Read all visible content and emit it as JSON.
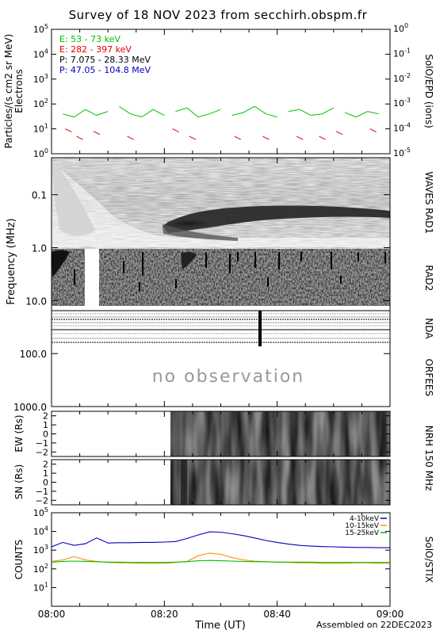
{
  "title": "Survey of 18 NOV 2023 from secchirh.obspm.fr",
  "footer": "Assembled on 22DEC2023",
  "xlabel": "Time (UT)",
  "time_ticks": [
    "08:00",
    "08:20",
    "08:40",
    "09:00"
  ],
  "no_observation": "no observation",
  "colors": {
    "green": "#00c000",
    "red": "#e00000",
    "black": "#000000",
    "blue": "#0000c0",
    "orange": "#ff8c00"
  },
  "chart_data": [
    {
      "type": "line",
      "panel": "particles",
      "ylabel": "Particles/(s cm2 sr MeV)",
      "ylabel2": "Electrons",
      "right_label": "SolO/EPD (ions)",
      "y_scale": "log",
      "ylim": [
        1,
        100000
      ],
      "left_ticks": [
        "10^0",
        "10^1",
        "10^2",
        "10^3",
        "10^4",
        "10^5"
      ],
      "right_ticks": [
        "10^-5",
        "10^-4",
        "10^-3",
        "10^-2",
        "10^-1",
        "10^0"
      ],
      "xlim": [
        "08:00",
        "09:00"
      ],
      "legend": [
        {
          "label": "E: 53 - 73 keV",
          "color": "green"
        },
        {
          "label": "E: 282 - 397 keV",
          "color": "red"
        },
        {
          "label": "P: 7.075 - 28.33 MeV",
          "color": "black"
        },
        {
          "label": "P: 47.05 - 104.8 MeV",
          "color": "blue"
        }
      ],
      "series": [
        {
          "name": "E: 53 - 73 keV",
          "color": "green",
          "x": [
            "08:02",
            "08:04",
            "08:06",
            "08:08",
            "08:10",
            "08:12",
            "08:14",
            "08:16",
            "08:18",
            "08:20",
            "08:22",
            "08:24",
            "08:26",
            "08:28",
            "08:30",
            "08:32",
            "08:34",
            "08:36",
            "08:38",
            "08:40",
            "08:42",
            "08:44",
            "08:46",
            "08:48",
            "08:50",
            "08:52",
            "08:54",
            "08:56",
            "08:58"
          ],
          "values": [
            40,
            30,
            60,
            35,
            50,
            80,
            40,
            30,
            60,
            35,
            50,
            70,
            30,
            40,
            60,
            35,
            45,
            80,
            40,
            30,
            50,
            60,
            35,
            40,
            70,
            45,
            30,
            50,
            40
          ]
        },
        {
          "name": "E: 282 - 397 keV",
          "color": "red",
          "x": [
            "08:03",
            "08:05",
            "08:08",
            "08:14",
            "08:22",
            "08:25",
            "08:33",
            "08:38",
            "08:44",
            "08:48",
            "08:51",
            "08:57"
          ],
          "values": [
            10,
            5,
            8,
            5,
            10,
            5,
            5,
            5,
            5,
            5,
            8,
            10
          ]
        }
      ]
    },
    {
      "type": "heatmap",
      "panel": "radio",
      "ylabel": "Frequency (MHz)",
      "y_scale": "log",
      "ylim": [
        0.02,
        1000
      ],
      "y_ticks": [
        "0.1",
        "1.0",
        "10.0",
        "100.0",
        "1000.0"
      ],
      "bands": [
        {
          "label": "WAVES RAD1",
          "range_mhz": [
            0.02,
            1
          ]
        },
        {
          "label": "RAD2",
          "range_mhz": [
            1,
            14
          ]
        },
        {
          "label": "NDA",
          "range_mhz": [
            14,
            80
          ]
        },
        {
          "label": "ORFEES",
          "range_mhz": [
            80,
            1000
          ]
        }
      ]
    },
    {
      "type": "heatmap",
      "panel": "nrh-ew",
      "ylabel": "EW (Rs)",
      "ylim": [
        -2.5,
        2.5
      ],
      "y_ticks": [
        "-2",
        "-1",
        "0",
        "1",
        "2"
      ]
    },
    {
      "type": "heatmap",
      "panel": "nrh-sn",
      "ylabel": "SN (Rs)",
      "right_label": "NRH 150 MHz",
      "ylim": [
        -2.5,
        2.5
      ],
      "y_ticks": [
        "-2",
        "-1",
        "0",
        "1",
        "2"
      ]
    },
    {
      "type": "line",
      "panel": "stix",
      "ylabel": "COUNTS",
      "right_label": "SolO/STIX",
      "y_scale": "log",
      "ylim": [
        1,
        100000
      ],
      "y_ticks": [
        "10^1",
        "10^2",
        "10^3",
        "10^4",
        "10^5"
      ],
      "x": [
        "08:00",
        "08:02",
        "08:04",
        "08:06",
        "08:08",
        "08:10",
        "08:12",
        "08:14",
        "08:16",
        "08:18",
        "08:20",
        "08:22",
        "08:24",
        "08:26",
        "08:28",
        "08:30",
        "08:32",
        "08:34",
        "08:36",
        "08:38",
        "08:40",
        "08:42",
        "08:44",
        "08:46",
        "08:48",
        "08:50",
        "08:52",
        "08:54",
        "08:56",
        "08:58",
        "09:00"
      ],
      "series": [
        {
          "name": "4-10keV",
          "color": "blue",
          "values": [
            1500,
            2600,
            1800,
            2200,
            4500,
            2400,
            2500,
            2500,
            2600,
            2600,
            2700,
            2900,
            4200,
            6500,
            9500,
            9200,
            7500,
            6000,
            4500,
            3300,
            2600,
            2100,
            1800,
            1650,
            1550,
            1500,
            1450,
            1400,
            1400,
            1350,
            1350
          ]
        },
        {
          "name": "10-15keV",
          "color": "orange",
          "values": [
            250,
            300,
            450,
            300,
            250,
            220,
            210,
            210,
            200,
            200,
            200,
            220,
            250,
            500,
            700,
            600,
            400,
            300,
            260,
            240,
            230,
            220,
            210,
            210,
            200,
            200,
            200,
            210,
            210,
            200,
            200
          ]
        },
        {
          "name": "15-25keV",
          "color": "green",
          "values": [
            230,
            250,
            260,
            250,
            240,
            230,
            230,
            220,
            220,
            220,
            220,
            230,
            240,
            270,
            280,
            270,
            260,
            250,
            240,
            240,
            230,
            230,
            230,
            230,
            220,
            220,
            220,
            220,
            220,
            220,
            220
          ]
        }
      ]
    }
  ]
}
